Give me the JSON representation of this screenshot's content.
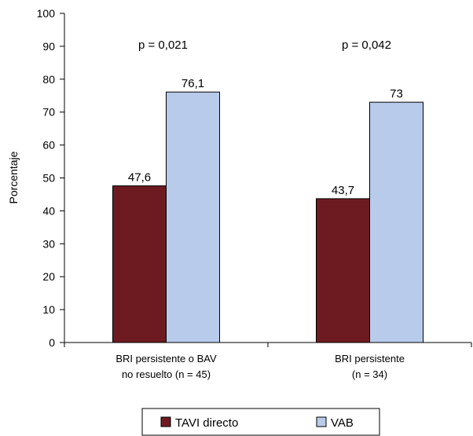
{
  "chart_data": {
    "type": "bar",
    "ylabel": "Porcentaje",
    "ylim": [
      0,
      100
    ],
    "yticks": [
      0,
      10,
      20,
      30,
      40,
      50,
      60,
      70,
      80,
      90,
      100
    ],
    "categories": [
      [
        "BRI persistente o BAV",
        "no resuelto (n = 45)"
      ],
      [
        "BRI persistente",
        "(n = 34)"
      ]
    ],
    "series": [
      {
        "name": "TAVI directo",
        "values": [
          47.6,
          43.7
        ],
        "labels": [
          "47,6",
          "43,7"
        ],
        "color": "#6e1a21"
      },
      {
        "name": "VAB",
        "values": [
          76.1,
          73
        ],
        "labels": [
          "76,1",
          "73"
        ],
        "color": "#b8cbea"
      }
    ],
    "annotations": [
      "p = 0,021",
      "p = 0,042"
    ],
    "legend_position": "bottom"
  }
}
